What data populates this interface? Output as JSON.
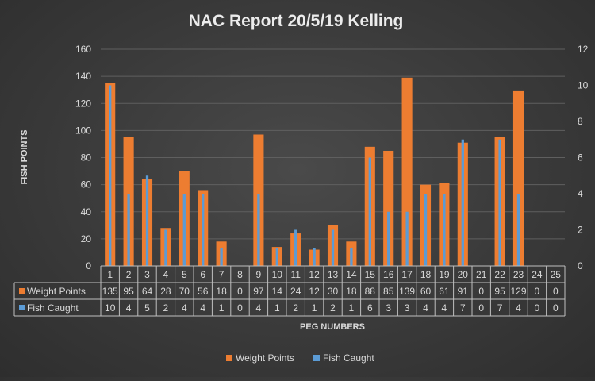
{
  "chart_data": {
    "type": "bar",
    "title": "NAC Report 20/5/19 Kelling",
    "xlabel": "PEG NUMBERS",
    "ylabel": "FISH POINTS",
    "ylabel_right": "",
    "ylim": [
      0,
      160
    ],
    "ylim_right": [
      0,
      12
    ],
    "yticks": [
      "0",
      "20",
      "40",
      "60",
      "80",
      "100",
      "120",
      "140",
      "160"
    ],
    "yticks_right": [
      "0",
      "2",
      "4",
      "6",
      "8",
      "10",
      "12"
    ],
    "grid": true,
    "legend": "bottom",
    "categories": [
      "1",
      "2",
      "3",
      "4",
      "5",
      "6",
      "7",
      "8",
      "9",
      "10",
      "11",
      "12",
      "13",
      "14",
      "15",
      "16",
      "17",
      "18",
      "19",
      "20",
      "21",
      "22",
      "23",
      "24",
      "25"
    ],
    "series": [
      {
        "name": "Weight Points",
        "axis": "left",
        "color": "#ed7d31",
        "values": [
          135,
          95,
          64,
          28,
          70,
          56,
          18,
          0,
          97,
          14,
          24,
          12,
          30,
          18,
          88,
          85,
          139,
          60,
          61,
          91,
          0,
          95,
          129,
          0,
          0
        ]
      },
      {
        "name": "Fish Caught",
        "axis": "right",
        "color": "#5b9bd5",
        "values": [
          10,
          4,
          5,
          2,
          4,
          4,
          1,
          0,
          4,
          1,
          2,
          1,
          2,
          1,
          6,
          3,
          3,
          4,
          4,
          7,
          0,
          7,
          4,
          0,
          0
        ]
      }
    ]
  }
}
